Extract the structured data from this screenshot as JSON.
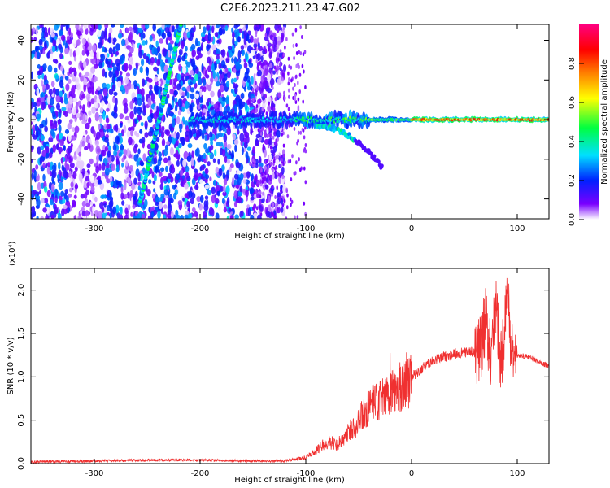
{
  "figure": {
    "title": "C2E6.2023.211.23.47.G02"
  },
  "chart_data": [
    {
      "type": "heatmap",
      "title": "C2E6.2023.211.23.47.G02",
      "xlabel": "Height of straight line (km)",
      "ylabel": "Frequency (Hz)",
      "xlim": [
        -360,
        130
      ],
      "ylim": [
        -50,
        48
      ],
      "xticks": [
        -300,
        -200,
        -100,
        0,
        100
      ],
      "yticks": [
        -40,
        -20,
        0,
        20,
        40
      ],
      "grid": false,
      "colorbar": {
        "label": "Normalized spectral amplitude",
        "ticks": [
          "0.0",
          "0.2",
          "0.4",
          "0.6",
          "0.8"
        ],
        "range": [
          0,
          1
        ],
        "stops": [
          "#ffffff",
          "#7a00ff",
          "#0020ff",
          "#00e0ff",
          "#00ff40",
          "#ffff00",
          "#ff8000",
          "#ff0000",
          "#ff0080"
        ]
      },
      "features": [
        {
          "name": "noise",
          "x": [
            -360,
            -120
          ],
          "note_level": 0.3
        },
        {
          "name": "streak",
          "x0": -257,
          "y0": -42,
          "x1": -218,
          "y1": 48
        },
        {
          "name": "ridge",
          "x": [
            -210,
            130
          ],
          "y": 0
        },
        {
          "name": "branch",
          "x0": -90,
          "y0": -3,
          "x1": -28,
          "y1": -24
        }
      ]
    },
    {
      "type": "line",
      "xlabel": "Height of straight line (km)",
      "ylabel": "SNR (10 * v/v)",
      "yunit": "(x10⁴)",
      "xlim": [
        -360,
        130
      ],
      "ylim": [
        0,
        22500
      ],
      "xticks": [
        -300,
        -200,
        -100,
        0,
        100
      ],
      "yticks": [
        0,
        5000,
        10000,
        15000,
        20000
      ],
      "ytick_labels": [
        "0.0",
        "0.5",
        "1.0",
        "1.5",
        "2.0"
      ],
      "grid": false,
      "series": [
        {
          "color": "#f03030",
          "x": [
            -360,
            -300,
            -250,
            -200,
            -150,
            -120,
            -110,
            -100,
            -90,
            -80,
            -70,
            -60,
            -50,
            -40,
            -30,
            -20,
            -10,
            0,
            10,
            20,
            30,
            40,
            50,
            60,
            65,
            70,
            75,
            80,
            85,
            90,
            95,
            100,
            110,
            120,
            130
          ],
          "y": [
            200,
            300,
            400,
            400,
            300,
            300,
            500,
            700,
            1500,
            2500,
            2200,
            3500,
            5000,
            6500,
            7200,
            8000,
            9000,
            10000,
            11000,
            11800,
            12300,
            12600,
            12800,
            12900,
            13000,
            16500,
            12800,
            17500,
            11000,
            20000,
            12600,
            12500,
            12300,
            11800,
            11200
          ]
        }
      ]
    }
  ]
}
